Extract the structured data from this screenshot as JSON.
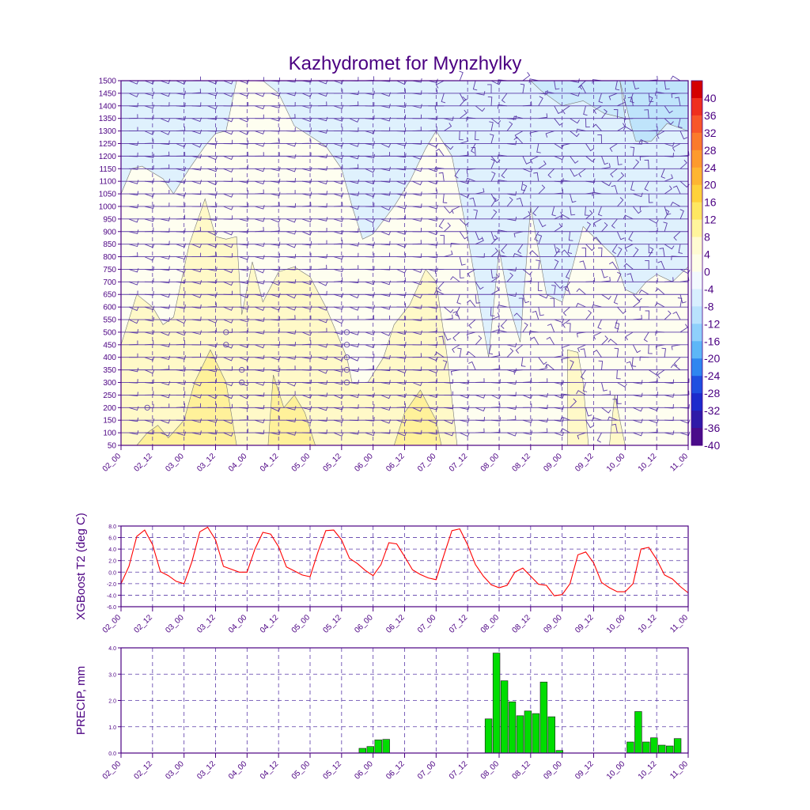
{
  "title": "Kazhydromet for Mynzhylky",
  "colors": {
    "frame": "#4b0082",
    "grid": "#5a3aa8",
    "text": "#4b0082",
    "temp_line": "#ff0000",
    "precip_bar": "#00dd00",
    "wind": "#5a3aa8"
  },
  "chart_data": [
    {
      "type": "contour",
      "name": "cross-section",
      "ylabel": "",
      "ylim": [
        50,
        1500
      ],
      "yticks": [
        50,
        100,
        150,
        200,
        250,
        300,
        350,
        400,
        450,
        500,
        550,
        600,
        650,
        700,
        750,
        800,
        850,
        900,
        950,
        1000,
        1050,
        1100,
        1150,
        1200,
        1250,
        1300,
        1350,
        1400,
        1450,
        1500
      ],
      "xlim": [
        0,
        108
      ],
      "xtick_labels": [
        "02_00",
        "02_12",
        "03_00",
        "03_12",
        "04_00",
        "04_12",
        "05_00",
        "05_12",
        "06_00",
        "06_12",
        "07_00",
        "07_12",
        "08_00",
        "08_12",
        "09_00",
        "09_12",
        "10_00",
        "10_12",
        "11_00"
      ],
      "colorbar": {
        "labels": [
          "40",
          "36",
          "32",
          "28",
          "24",
          "20",
          "16",
          "12",
          "8",
          "4",
          "0",
          "-4",
          "-8",
          "-12",
          "-16",
          "-20",
          "-24",
          "-28",
          "-32",
          "-36",
          "-40"
        ],
        "colors": [
          "#d40000",
          "#ef2f1e",
          "#f8562a",
          "#fb7a2c",
          "#fd9a2e",
          "#feb532",
          "#ffd13a",
          "#fee761",
          "#fff59c",
          "#fffbd2",
          "#fefee8",
          "#f2f9fe",
          "#d8efff",
          "#b9e2fd",
          "#8fd0fb",
          "#5db7f7",
          "#2f86f0",
          "#1f4fe0",
          "#1c2bcc",
          "#2f1aa8",
          "#4a0c8a"
        ]
      },
      "regions": {
        "cold_-8_to_-4": [
          [
            0,
            1050
          ],
          [
            2,
            1150
          ],
          [
            4,
            1160
          ],
          [
            8,
            1110
          ],
          [
            10,
            1050
          ],
          [
            13,
            1150
          ],
          [
            16,
            1240
          ],
          [
            18,
            1290
          ],
          [
            20,
            1300
          ],
          [
            22,
            1500
          ],
          [
            27,
            1500
          ],
          [
            30,
            1450
          ],
          [
            33,
            1320
          ],
          [
            36,
            1280
          ],
          [
            39,
            1240
          ],
          [
            42,
            1150
          ],
          [
            44,
            1000
          ],
          [
            46,
            870
          ],
          [
            48,
            890
          ],
          [
            52,
            1000
          ],
          [
            55,
            1100
          ],
          [
            58,
            1230
          ],
          [
            60,
            1300
          ],
          [
            63,
            1200
          ],
          [
            66,
            880
          ],
          [
            70,
            400
          ],
          [
            72,
            830
          ],
          [
            74,
            600
          ],
          [
            76,
            460
          ],
          [
            78,
            1000
          ],
          [
            81,
            650
          ],
          [
            84,
            620
          ],
          [
            86,
            760
          ],
          [
            88,
            920
          ],
          [
            91,
            860
          ],
          [
            94,
            800
          ],
          [
            96,
            670
          ],
          [
            98,
            650
          ],
          [
            100,
            700
          ],
          [
            102,
            730
          ],
          [
            105,
            700
          ],
          [
            108,
            760
          ],
          [
            108,
            1500
          ],
          [
            0,
            1500
          ]
        ],
        "warm_0_to_4": [
          [
            0,
            450
          ],
          [
            3,
            650
          ],
          [
            6,
            600
          ],
          [
            8,
            530
          ],
          [
            10,
            560
          ],
          [
            13,
            850
          ],
          [
            16,
            1030
          ],
          [
            18,
            880
          ],
          [
            20,
            870
          ],
          [
            22,
            880
          ],
          [
            23,
            570
          ],
          [
            25,
            780
          ],
          [
            27,
            620
          ],
          [
            30,
            740
          ],
          [
            33,
            760
          ],
          [
            36,
            720
          ],
          [
            39,
            600
          ],
          [
            41,
            500
          ],
          [
            43,
            400
          ],
          [
            44,
            300
          ],
          [
            47,
            300
          ],
          [
            50,
            400
          ],
          [
            52,
            530
          ],
          [
            55,
            610
          ],
          [
            58,
            750
          ],
          [
            60,
            700
          ],
          [
            62,
            420
          ],
          [
            64,
            50
          ],
          [
            0,
            50
          ]
        ],
        "warm_0_to_4_b": [
          [
            85,
            50
          ],
          [
            85,
            430
          ],
          [
            87,
            420
          ],
          [
            88,
            300
          ],
          [
            89,
            50
          ]
        ],
        "warm_0_to_4_c": [
          [
            93,
            50
          ],
          [
            94,
            250
          ],
          [
            96,
            50
          ]
        ],
        "warm_4_to_8": [
          [
            3,
            50
          ],
          [
            5,
            100
          ],
          [
            7,
            130
          ],
          [
            9,
            80
          ],
          [
            12,
            150
          ],
          [
            14,
            300
          ],
          [
            17,
            430
          ],
          [
            20,
            300
          ],
          [
            22,
            50
          ]
        ],
        "warm_4_to_8_b": [
          [
            28,
            50
          ],
          [
            29,
            330
          ],
          [
            31,
            200
          ],
          [
            33,
            250
          ],
          [
            35,
            180
          ],
          [
            37,
            50
          ]
        ],
        "warm_4_to_8_c": [
          [
            52,
            50
          ],
          [
            54,
            180
          ],
          [
            57,
            270
          ],
          [
            60,
            150
          ],
          [
            61,
            50
          ]
        ]
      }
    },
    {
      "type": "line",
      "name": "temperature",
      "ylabel": "XGBoost T2 (deg C)",
      "ylim": [
        -6,
        8
      ],
      "yticks": [
        "-6.0",
        "-4.0",
        "-2.0",
        "0.0",
        "2.0",
        "4.0",
        "6.0",
        "8.0"
      ],
      "xtick_labels": [
        "02_00",
        "02_12",
        "03_00",
        "03_12",
        "04_00",
        "04_12",
        "05_00",
        "05_12",
        "06_00",
        "06_12",
        "07_00",
        "07_12",
        "08_00",
        "08_12",
        "09_00",
        "09_12",
        "10_00",
        "10_12",
        "11_00"
      ],
      "x_step_hours": 3,
      "values": [
        -2.0,
        1.0,
        6.2,
        7.3,
        4.8,
        0.1,
        -0.6,
        -1.6,
        -2.0,
        1.8,
        7.0,
        7.8,
        5.6,
        1.0,
        0.5,
        0.0,
        0.0,
        4.0,
        6.9,
        6.6,
        4.4,
        0.9,
        0.2,
        -0.5,
        -0.8,
        3.5,
        7.2,
        7.3,
        5.6,
        2.4,
        1.5,
        0.3,
        -0.6,
        1.3,
        5.1,
        4.9,
        2.7,
        0.4,
        -0.4,
        -1.0,
        -1.3,
        3.0,
        7.2,
        7.5,
        4.7,
        1.3,
        -0.7,
        -2.2,
        -2.7,
        -2.3,
        0.0,
        0.7,
        -0.7,
        -2.1,
        -2.3,
        -4.1,
        -3.9,
        -2.0,
        3.0,
        3.5,
        1.6,
        -1.8,
        -2.7,
        -3.4,
        -3.4,
        -2.0,
        4.0,
        4.3,
        2.2,
        -0.5,
        -1.2,
        -2.5,
        -3.6
      ]
    },
    {
      "type": "bar",
      "name": "precipitation",
      "ylabel": "PRECIP, mm",
      "ylim": [
        0,
        4
      ],
      "yticks": [
        "0.0",
        "1.0",
        "2.0",
        "3.0",
        "4.0"
      ],
      "xtick_labels": [
        "02_00",
        "02_12",
        "03_00",
        "03_12",
        "04_00",
        "04_12",
        "05_00",
        "05_12",
        "06_00",
        "06_12",
        "07_00",
        "07_12",
        "08_00",
        "08_12",
        "09_00",
        "09_12",
        "10_00",
        "10_12",
        "11_00"
      ],
      "bar_step_hours": 1.5,
      "bars": [
        [
          46,
          0.18
        ],
        [
          47.5,
          0.25
        ],
        [
          49,
          0.5
        ],
        [
          50.5,
          0.52
        ],
        [
          70,
          1.3
        ],
        [
          71.5,
          3.8
        ],
        [
          73,
          2.75
        ],
        [
          74.5,
          1.95
        ],
        [
          76,
          1.42
        ],
        [
          77.5,
          1.6
        ],
        [
          79,
          1.5
        ],
        [
          80.5,
          2.7
        ],
        [
          82,
          1.38
        ],
        [
          83.5,
          0.1
        ],
        [
          97,
          0.42
        ],
        [
          98.5,
          1.58
        ],
        [
          100,
          0.42
        ],
        [
          101.5,
          0.58
        ],
        [
          103,
          0.3
        ],
        [
          104.5,
          0.27
        ],
        [
          106,
          0.55
        ]
      ]
    }
  ]
}
